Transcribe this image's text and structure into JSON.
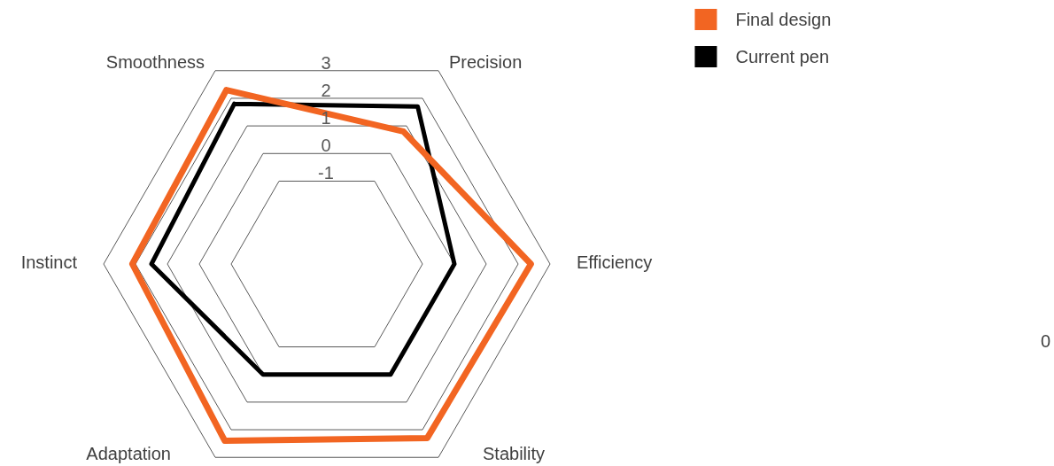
{
  "chart_data": {
    "type": "radar",
    "categories": [
      "Smoothness",
      "Precision",
      "Efficiency",
      "Stability",
      "Adaptation",
      "Instinct"
    ],
    "series": [
      {
        "name": "Final design",
        "color": "#f26522",
        "values": [
          2.3,
          0.8,
          2.4,
          2.3,
          2.4,
          2.1
        ]
      },
      {
        "name": "Current pen",
        "color": "#000000",
        "values": [
          1.8,
          1.7,
          0,
          0,
          0,
          1.5
        ]
      }
    ],
    "ylim": [
      -4,
      3
    ],
    "yticks": [
      -1,
      0,
      1,
      2,
      3
    ],
    "grid": true,
    "legend": "top right",
    "marker": "none",
    "line_style": "solid",
    "annotations": [
      "0"
    ]
  }
}
